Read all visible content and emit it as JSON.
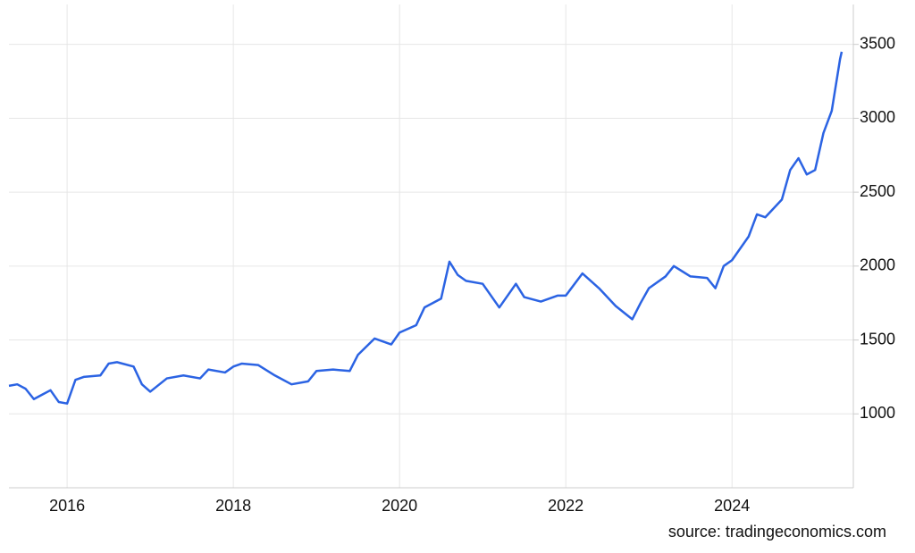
{
  "chart_data": {
    "type": "line",
    "source": "source: tradingeconomics.com",
    "x": [
      2015.3,
      2015.4,
      2015.5,
      2015.6,
      2015.7,
      2015.8,
      2015.9,
      2016.0,
      2016.1,
      2016.2,
      2016.4,
      2016.5,
      2016.6,
      2016.8,
      2016.9,
      2017.0,
      2017.2,
      2017.4,
      2017.6,
      2017.7,
      2017.9,
      2018.0,
      2018.1,
      2018.3,
      2018.5,
      2018.7,
      2018.9,
      2019.0,
      2019.2,
      2019.4,
      2019.5,
      2019.7,
      2019.9,
      2020.0,
      2020.2,
      2020.3,
      2020.5,
      2020.6,
      2020.7,
      2020.8,
      2021.0,
      2021.2,
      2021.4,
      2021.5,
      2021.7,
      2021.9,
      2022.0,
      2022.2,
      2022.4,
      2022.6,
      2022.8,
      2022.9,
      2023.0,
      2023.2,
      2023.3,
      2023.5,
      2023.7,
      2023.8,
      2023.9,
      2024.0,
      2024.2,
      2024.3,
      2024.4,
      2024.6,
      2024.7,
      2024.8,
      2024.9,
      2025.0,
      2025.1,
      2025.2,
      2025.3,
      2025.32
    ],
    "series": [
      {
        "color": "#2b63e3",
        "values": [
          1190,
          1200,
          1170,
          1100,
          1130,
          1160,
          1080,
          1070,
          1230,
          1250,
          1260,
          1340,
          1350,
          1320,
          1200,
          1150,
          1240,
          1260,
          1240,
          1300,
          1280,
          1320,
          1340,
          1330,
          1260,
          1200,
          1220,
          1290,
          1300,
          1290,
          1400,
          1510,
          1470,
          1550,
          1600,
          1720,
          1780,
          2030,
          1940,
          1900,
          1880,
          1720,
          1880,
          1790,
          1760,
          1800,
          1800,
          1950,
          1850,
          1730,
          1640,
          1750,
          1850,
          1930,
          2000,
          1930,
          1920,
          1850,
          2000,
          2040,
          2200,
          2350,
          2330,
          2450,
          2650,
          2730,
          2620,
          2650,
          2900,
          3050,
          3400,
          3450
        ]
      }
    ],
    "xlim": [
      2015.3,
      2025.46
    ],
    "xticks": [
      2016,
      2018,
      2020,
      2022,
      2024
    ],
    "ylim": [
      500,
      3770
    ],
    "yticks": [
      1000,
      1500,
      2000,
      2500,
      3000,
      3500
    ],
    "grid": true
  }
}
